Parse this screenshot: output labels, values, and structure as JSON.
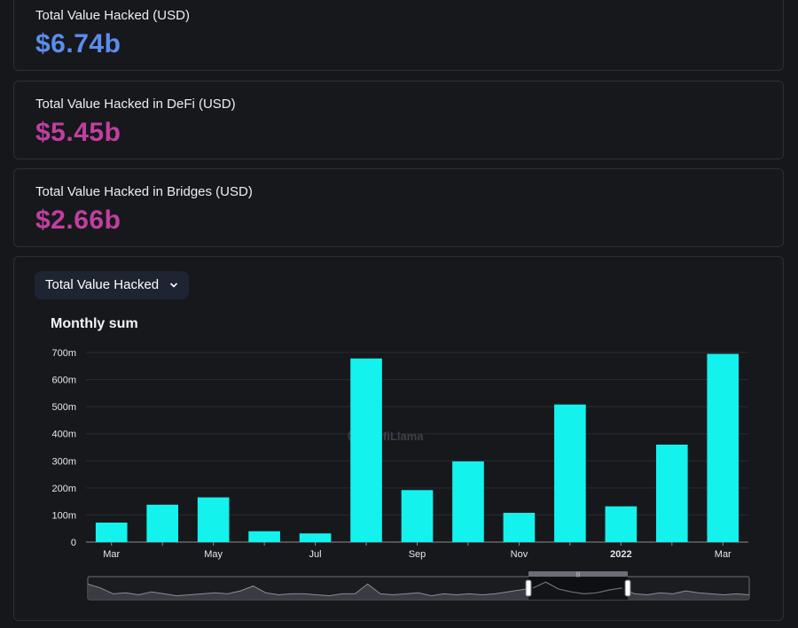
{
  "stats": [
    {
      "title": "Total Value Hacked (USD)",
      "value": "$6.74b",
      "color": "#5b8def"
    },
    {
      "title": "Total Value Hacked in DeFi (USD)",
      "value": "$5.45b",
      "color": "#c13fa0"
    },
    {
      "title": "Total Value Hacked in Bridges (USD)",
      "value": "$2.66b",
      "color": "#c13fa0"
    }
  ],
  "dropdown": {
    "label": "Total Value Hacked",
    "icon": "chevron-down-icon"
  },
  "chart": {
    "title": "Monthly sum",
    "watermark": "DefiLlama"
  },
  "colors": {
    "bar": "#14f2ee",
    "background": "#16171a",
    "card": "#17181c",
    "border": "#2c2f36"
  },
  "chart_data": {
    "type": "bar",
    "title": "Monthly sum",
    "categories": [
      "2021-03",
      "2021-04",
      "2021-05",
      "2021-06",
      "2021-07",
      "2021-08",
      "2021-09",
      "2021-10",
      "2021-11",
      "2021-12",
      "2022-01",
      "2022-02",
      "2022-03"
    ],
    "x_tick_labels": [
      "Mar",
      "",
      "May",
      "",
      "Jul",
      "",
      "Sep",
      "",
      "Nov",
      "",
      "2022",
      "",
      "Mar"
    ],
    "values": [
      72000000,
      138000000,
      165000000,
      40000000,
      32000000,
      678000000,
      192000000,
      298000000,
      108000000,
      508000000,
      132000000,
      360000000,
      695000000
    ],
    "ylim": [
      0,
      700000000
    ],
    "yticks": [
      0,
      100000000,
      200000000,
      300000000,
      400000000,
      500000000,
      600000000,
      700000000
    ],
    "ytick_labels": [
      "0",
      "100m",
      "200m",
      "300m",
      "400m",
      "500m",
      "600m",
      "700m"
    ],
    "grid": true,
    "xlabel": "",
    "ylabel": ""
  }
}
